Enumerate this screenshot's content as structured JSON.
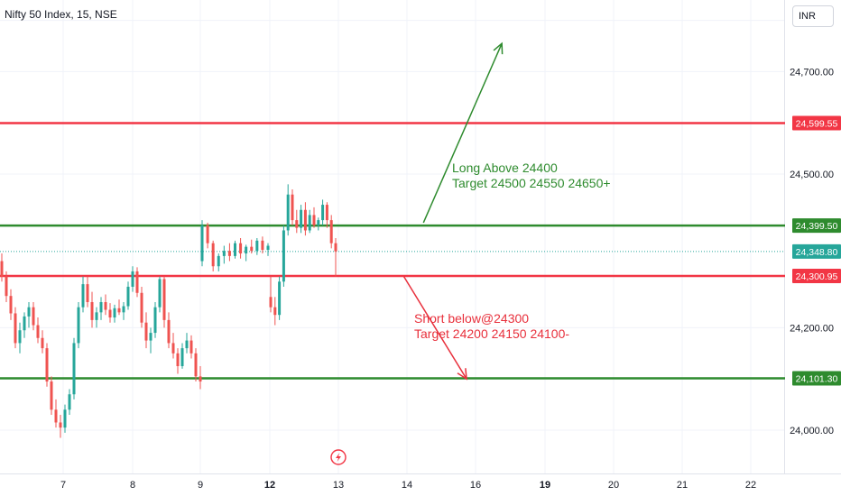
{
  "header": {
    "symbol": "Nifty 50 Index, 15, NSE",
    "currency": "INR"
  },
  "annotations": {
    "long_line1": "Long Above 24400",
    "long_line2": "Target 24500 24550 24650+",
    "short_line1": "Short below@24300",
    "short_line2": "Target 24200 24150 24100-"
  },
  "colors": {
    "red_level": "#f23645",
    "green_level": "#2e8b2e",
    "up_candle": "#26a69a",
    "down_candle": "#ef5350",
    "last_price_tag": "#26a69a",
    "dotted_line": "#26a69a",
    "grid": "#f0f3fa",
    "long_text": "#2e8b2e",
    "short_text": "#e8303c"
  },
  "chart_data": {
    "type": "candlestick",
    "ylim": [
      23950,
      24810
    ],
    "y_ticks": [
      {
        "value": 24000,
        "label": "24,000.00"
      },
      {
        "value": 24200,
        "label": "24,200.00"
      },
      {
        "value": 24500,
        "label": "24,500.00"
      },
      {
        "value": 24700,
        "label": "24,700.00"
      }
    ],
    "x_ticks": [
      {
        "label": "7",
        "bold": false
      },
      {
        "label": "8",
        "bold": false
      },
      {
        "label": "9",
        "bold": false
      },
      {
        "label": "12",
        "bold": true
      },
      {
        "label": "13",
        "bold": false
      },
      {
        "label": "14",
        "bold": false
      },
      {
        "label": "16",
        "bold": false
      },
      {
        "label": "19",
        "bold": true
      },
      {
        "label": "20",
        "bold": false
      },
      {
        "label": "21",
        "bold": false
      },
      {
        "label": "22",
        "bold": false
      }
    ],
    "horizontal_levels": [
      {
        "value": 24599.55,
        "label": "24,599.55",
        "color": "red"
      },
      {
        "value": 24399.5,
        "label": "24,399.50",
        "color": "green"
      },
      {
        "value": 24300.95,
        "label": "24,300.95",
        "color": "red"
      },
      {
        "value": 24101.3,
        "label": "24,101.30",
        "color": "green"
      }
    ],
    "last_price": {
      "value": 24348.8,
      "label": "24,348.80"
    },
    "ohlc": [
      [
        24330,
        24345,
        24290,
        24300
      ],
      [
        24300,
        24310,
        24250,
        24262
      ],
      [
        24262,
        24275,
        24215,
        24228
      ],
      [
        24228,
        24240,
        24160,
        24170
      ],
      [
        24170,
        24210,
        24150,
        24195
      ],
      [
        24195,
        24230,
        24180,
        24222
      ],
      [
        24222,
        24250,
        24200,
        24240
      ],
      [
        24240,
        24250,
        24195,
        24205
      ],
      [
        24205,
        24220,
        24170,
        24180
      ],
      [
        24180,
        24195,
        24150,
        24160
      ],
      [
        24160,
        24170,
        24085,
        24095
      ],
      [
        24095,
        24105,
        24030,
        24040
      ],
      [
        24040,
        24060,
        24005,
        24015
      ],
      [
        24015,
        24030,
        23985,
        24005
      ],
      [
        24005,
        24050,
        23995,
        24040
      ],
      [
        24040,
        24080,
        24030,
        24070
      ],
      [
        24070,
        24180,
        24060,
        24170
      ],
      [
        24170,
        24250,
        24160,
        24240
      ],
      [
        24240,
        24300,
        24230,
        24285
      ],
      [
        24285,
        24300,
        24240,
        24250
      ],
      [
        24250,
        24270,
        24200,
        24215
      ],
      [
        24215,
        24240,
        24200,
        24230
      ],
      [
        24230,
        24260,
        24215,
        24250
      ],
      [
        24250,
        24265,
        24225,
        24235
      ],
      [
        24235,
        24248,
        24210,
        24220
      ],
      [
        24220,
        24245,
        24210,
        24238
      ],
      [
        24238,
        24255,
        24225,
        24230
      ],
      [
        24230,
        24250,
        24215,
        24242
      ],
      [
        24242,
        24290,
        24235,
        24280
      ],
      [
        24280,
        24320,
        24270,
        24310
      ],
      [
        24310,
        24318,
        24260,
        24268
      ],
      [
        24268,
        24280,
        24200,
        24210
      ],
      [
        24210,
        24230,
        24160,
        24175
      ],
      [
        24175,
        24200,
        24150,
        24190
      ],
      [
        24190,
        24250,
        24180,
        24240
      ],
      [
        24240,
        24300,
        24230,
        24295
      ],
      [
        24295,
        24300,
        24200,
        24215
      ],
      [
        24215,
        24230,
        24160,
        24170
      ],
      [
        24170,
        24190,
        24140,
        24150
      ],
      [
        24150,
        24160,
        24110,
        24125
      ],
      [
        24125,
        24170,
        24120,
        24160
      ],
      [
        24160,
        24190,
        24150,
        24175
      ],
      [
        24175,
        24185,
        24140,
        24150
      ],
      [
        24150,
        24160,
        24095,
        24105
      ],
      [
        24105,
        24125,
        24080,
        24095
      ],
      [
        24330,
        24410,
        24320,
        24400
      ],
      [
        24400,
        24405,
        24355,
        24365
      ],
      [
        24365,
        24370,
        24310,
        24320
      ],
      [
        24320,
        24345,
        24310,
        24340
      ],
      [
        24340,
        24360,
        24325,
        24350
      ],
      [
        24350,
        24365,
        24330,
        24340
      ],
      [
        24340,
        24370,
        24335,
        24365
      ],
      [
        24365,
        24375,
        24335,
        24345
      ],
      [
        24345,
        24362,
        24330,
        24358
      ],
      [
        24358,
        24372,
        24345,
        24350
      ],
      [
        24350,
        24375,
        24342,
        24370
      ],
      [
        24370,
        24378,
        24345,
        24352
      ],
      [
        24352,
        24365,
        24340,
        24360
      ],
      [
        24260,
        24300,
        24230,
        24240
      ],
      [
        24240,
        24260,
        24205,
        24225
      ],
      [
        24225,
        24300,
        24215,
        24290
      ],
      [
        24290,
        24400,
        24280,
        24390
      ],
      [
        24390,
        24480,
        24380,
        24460
      ],
      [
        24460,
        24470,
        24400,
        24410
      ],
      [
        24410,
        24430,
        24385,
        24395
      ],
      [
        24395,
        24440,
        24385,
        24430
      ],
      [
        24430,
        24445,
        24380,
        24390
      ],
      [
        24390,
        24430,
        24385,
        24420
      ],
      [
        24420,
        24435,
        24395,
        24400
      ],
      [
        24400,
        24415,
        24390,
        24410
      ],
      [
        24410,
        24450,
        24400,
        24440
      ],
      [
        24440,
        24445,
        24395,
        24410
      ],
      [
        24410,
        24420,
        24355,
        24365
      ],
      [
        24365,
        24375,
        24300,
        24349
      ]
    ],
    "arrows": [
      {
        "label": "long",
        "from": [
          24405,
          0.54
        ],
        "to": [
          24755,
          0.64
        ]
      },
      {
        "label": "short",
        "from": [
          24300,
          0.515
        ],
        "to": [
          24100,
          0.595
        ]
      }
    ]
  }
}
